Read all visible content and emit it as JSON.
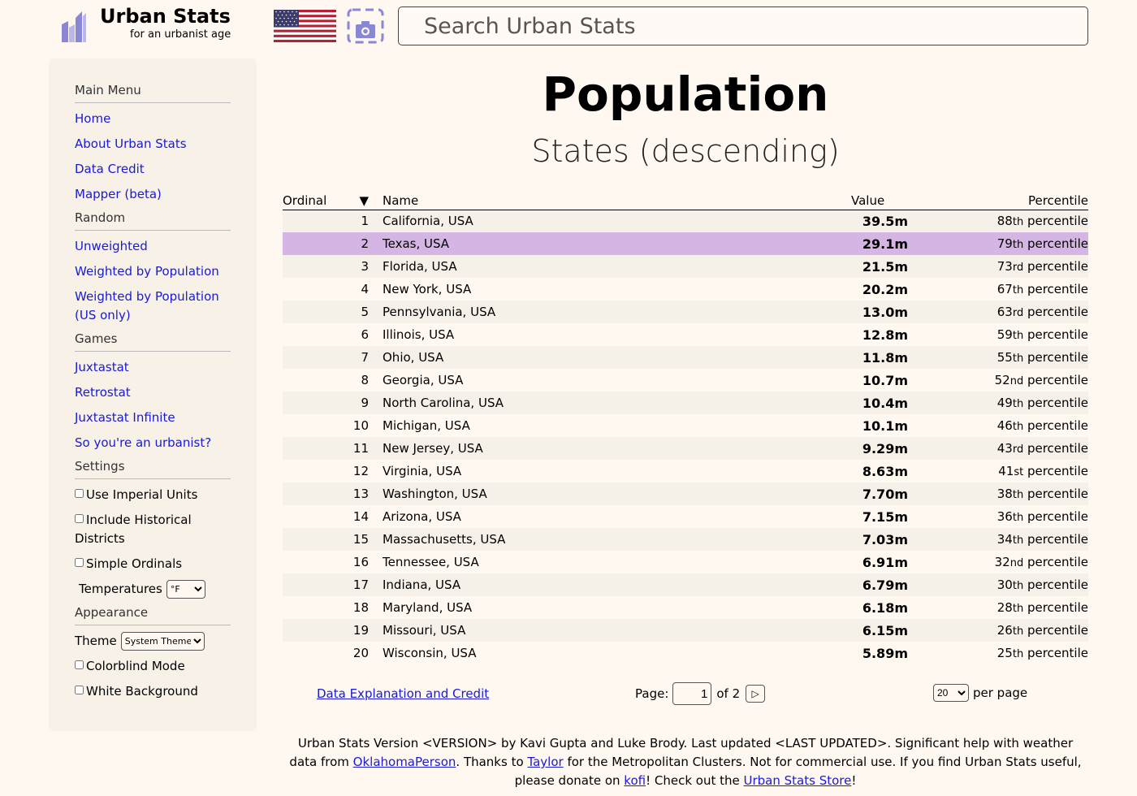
{
  "header": {
    "logo_title": "Urban Stats",
    "logo_subtitle": "for an urbanist age",
    "search_placeholder": "Search Urban Stats"
  },
  "sidebar": {
    "main_menu": {
      "heading": "Main Menu",
      "links": [
        "Home",
        "About Urban Stats",
        "Data Credit",
        "Mapper (beta)"
      ]
    },
    "random": {
      "heading": "Random",
      "links": [
        "Unweighted",
        "Weighted by Population",
        "Weighted by Population (US only)"
      ]
    },
    "games": {
      "heading": "Games",
      "links": [
        "Juxtastat",
        "Retrostat",
        "Juxtastat Infinite",
        "So you're an urbanist?"
      ]
    },
    "settings": {
      "heading": "Settings",
      "checkboxes": [
        "Use Imperial Units",
        "Include Historical Districts",
        "Simple Ordinals"
      ],
      "temperatures_label": "Temperatures",
      "temperatures_value": "°F"
    },
    "appearance": {
      "heading": "Appearance",
      "theme_label": "Theme",
      "theme_value": "System Theme",
      "checkboxes": [
        "Colorblind Mode",
        "White Background"
      ]
    }
  },
  "main": {
    "title": "Population",
    "subtitle": "States (descending)",
    "columns": {
      "ordinal": "Ordinal",
      "sort_arrow": "▼",
      "name": "Name",
      "value": "Value",
      "percentile": "Percentile"
    },
    "rows": [
      {
        "ord": "1",
        "name": "California, USA",
        "value": "39.5",
        "unit": "m",
        "pct_num": "88",
        "pct_suffix": "th",
        "pct_word": " percentile"
      },
      {
        "ord": "2",
        "name": "Texas, USA",
        "value": "29.1",
        "unit": "m",
        "pct_num": "79",
        "pct_suffix": "th",
        "pct_word": " percentile"
      },
      {
        "ord": "3",
        "name": "Florida, USA",
        "value": "21.5",
        "unit": "m",
        "pct_num": "73",
        "pct_suffix": "rd",
        "pct_word": " percentile"
      },
      {
        "ord": "4",
        "name": "New York, USA",
        "value": "20.2",
        "unit": "m",
        "pct_num": "67",
        "pct_suffix": "th",
        "pct_word": " percentile"
      },
      {
        "ord": "5",
        "name": "Pennsylvania, USA",
        "value": "13.0",
        "unit": "m",
        "pct_num": "63",
        "pct_suffix": "rd",
        "pct_word": " percentile"
      },
      {
        "ord": "6",
        "name": "Illinois, USA",
        "value": "12.8",
        "unit": "m",
        "pct_num": "59",
        "pct_suffix": "th",
        "pct_word": " percentile"
      },
      {
        "ord": "7",
        "name": "Ohio, USA",
        "value": "11.8",
        "unit": "m",
        "pct_num": "55",
        "pct_suffix": "th",
        "pct_word": " percentile"
      },
      {
        "ord": "8",
        "name": "Georgia, USA",
        "value": "10.7",
        "unit": "m",
        "pct_num": "52",
        "pct_suffix": "nd",
        "pct_word": " percentile"
      },
      {
        "ord": "9",
        "name": "North Carolina, USA",
        "value": "10.4",
        "unit": "m",
        "pct_num": "49",
        "pct_suffix": "th",
        "pct_word": " percentile"
      },
      {
        "ord": "10",
        "name": "Michigan, USA",
        "value": "10.1",
        "unit": "m",
        "pct_num": "46",
        "pct_suffix": "th",
        "pct_word": " percentile"
      },
      {
        "ord": "11",
        "name": "New Jersey, USA",
        "value": "9.29",
        "unit": "m",
        "pct_num": "43",
        "pct_suffix": "rd",
        "pct_word": " percentile"
      },
      {
        "ord": "12",
        "name": "Virginia, USA",
        "value": "8.63",
        "unit": "m",
        "pct_num": "41",
        "pct_suffix": "st",
        "pct_word": " percentile"
      },
      {
        "ord": "13",
        "name": "Washington, USA",
        "value": "7.70",
        "unit": "m",
        "pct_num": "38",
        "pct_suffix": "th",
        "pct_word": " percentile"
      },
      {
        "ord": "14",
        "name": "Arizona, USA",
        "value": "7.15",
        "unit": "m",
        "pct_num": "36",
        "pct_suffix": "th",
        "pct_word": " percentile"
      },
      {
        "ord": "15",
        "name": "Massachusetts, USA",
        "value": "7.03",
        "unit": "m",
        "pct_num": "34",
        "pct_suffix": "th",
        "pct_word": " percentile"
      },
      {
        "ord": "16",
        "name": "Tennessee, USA",
        "value": "6.91",
        "unit": "m",
        "pct_num": "32",
        "pct_suffix": "nd",
        "pct_word": " percentile"
      },
      {
        "ord": "17",
        "name": "Indiana, USA",
        "value": "6.79",
        "unit": "m",
        "pct_num": "30",
        "pct_suffix": "th",
        "pct_word": " percentile"
      },
      {
        "ord": "18",
        "name": "Maryland, USA",
        "value": "6.18",
        "unit": "m",
        "pct_num": "28",
        "pct_suffix": "th",
        "pct_word": " percentile"
      },
      {
        "ord": "19",
        "name": "Missouri, USA",
        "value": "6.15",
        "unit": "m",
        "pct_num": "26",
        "pct_suffix": "th",
        "pct_word": " percentile"
      },
      {
        "ord": "20",
        "name": "Wisconsin, USA",
        "value": "5.89",
        "unit": "m",
        "pct_num": "25",
        "pct_suffix": "th",
        "pct_word": " percentile"
      }
    ],
    "highlight_row": 2,
    "footer": {
      "data_link": "Data Explanation and Credit",
      "page_label": "Page:",
      "page_value": "1",
      "of_text": "of 2",
      "next_symbol": "▷",
      "per_page_value": "20",
      "per_page_label": "per page"
    }
  },
  "credits": {
    "part1": "Urban Stats Version <VERSION> by Kavi Gupta and Luke Brody. Last updated <LAST UPDATED>. Significant help with weather data from ",
    "link1": "OklahomaPerson",
    "part2": ". Thanks to ",
    "link2": "Taylor",
    "part3": " for the Metropolitan Clusters. Not for commercial use. If you find Urban Stats useful, please donate on ",
    "link3": "kofi",
    "part4": "! Check out the ",
    "link4": "Urban Stats Store",
    "part5": "!"
  },
  "colors": {
    "background": "#fff8f0",
    "sidebar": "#f7f1e8",
    "row_alt": "#f5f1e8",
    "highlight": "#d4b5e4",
    "link": "#1a1ad4",
    "logo": "#8a88d6"
  }
}
